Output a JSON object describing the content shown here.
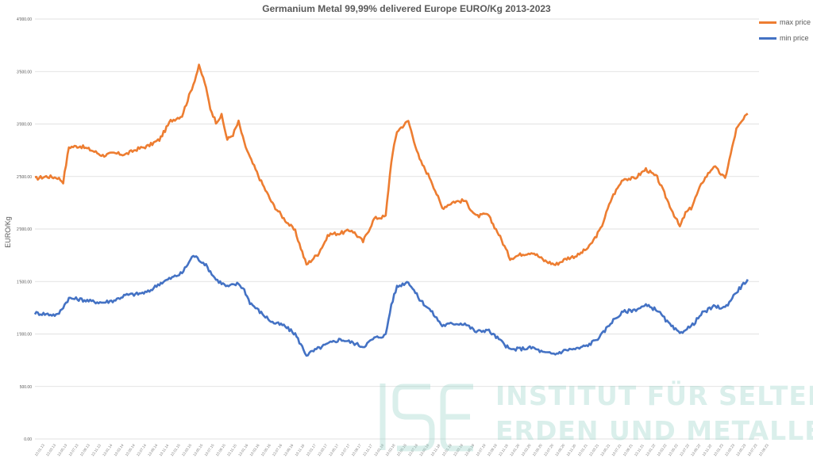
{
  "chart_data": {
    "type": "line",
    "title": "Germanium Metal 99,99% delivered Europe EURO/Kg  2013-2023",
    "xlabel": "",
    "ylabel": "EURO/Kg",
    "ylim": [
      0,
      4000
    ],
    "yticks": [
      "0.00",
      "500.00",
      "1'000.00",
      "1'500.00",
      "2'000.00",
      "2'500.00",
      "3'000.00",
      "3'500.00",
      "4'000.00"
    ],
    "ytick_values": [
      0,
      500,
      1000,
      1500,
      2000,
      2500,
      3000,
      3500,
      4000
    ],
    "grid": true,
    "legend_position": "top-right",
    "xticks": [
      "13.01.13",
      "13.03.13",
      "13.05.13",
      "13.07.13",
      "13.09.13",
      "13.11.13",
      "13.01.14",
      "13.03.14",
      "13.05.14",
      "13.07.14",
      "13.09.14",
      "13.11.14",
      "13.01.15",
      "13.03.15",
      "13.05.15",
      "13.07.15",
      "13.09.15",
      "13.11.15",
      "13.01.16",
      "13.03.16",
      "13.05.16",
      "13.07.16",
      "13.09.16",
      "13.11.16",
      "13.01.17",
      "13.03.17",
      "13.05.17",
      "13.07.17",
      "13.09.17",
      "13.11.17",
      "13.01.18",
      "13.03.18",
      "13.05.18",
      "13.07.18",
      "13.09.18",
      "13.11.18",
      "13.01.19",
      "13.03.19",
      "13.05.19",
      "13.07.19",
      "13.09.19",
      "13.11.19",
      "13.01.20",
      "13.03.20",
      "13.05.20",
      "13.07.20",
      "13.09.20",
      "13.11.20",
      "13.01.21",
      "13.03.21",
      "13.05.21",
      "13.07.21",
      "13.09.21",
      "13.11.21",
      "13.01.22",
      "13.03.22",
      "13.05.22",
      "13.07.22",
      "13.09.22",
      "13.11.22",
      "13.01.23",
      "13.03.23",
      "13.05.23",
      "13.07.23",
      "13.09.23"
    ],
    "x_start": "2013-01",
    "x_end": "2023-09",
    "series": [
      {
        "name": "max price",
        "color": "#ED7D31",
        "points": [
          [
            "2013-01",
            2480
          ],
          [
            "2013-03",
            2500
          ],
          [
            "2013-05",
            2490
          ],
          [
            "2013-06",
            2450
          ],
          [
            "2013-07",
            2780
          ],
          [
            "2013-09",
            2790
          ],
          [
            "2013-11",
            2750
          ],
          [
            "2014-01",
            2700
          ],
          [
            "2014-03",
            2720
          ],
          [
            "2014-05",
            2710
          ],
          [
            "2014-07",
            2760
          ],
          [
            "2014-09",
            2790
          ],
          [
            "2014-11",
            2850
          ],
          [
            "2015-01",
            3030
          ],
          [
            "2015-03",
            3080
          ],
          [
            "2015-05",
            3380
          ],
          [
            "2015-06",
            3550
          ],
          [
            "2015-07",
            3400
          ],
          [
            "2015-08",
            3150
          ],
          [
            "2015-09",
            3020
          ],
          [
            "2015-10",
            3080
          ],
          [
            "2015-11",
            2850
          ],
          [
            "2015-12",
            2900
          ],
          [
            "2016-01",
            3020
          ],
          [
            "2016-02",
            2820
          ],
          [
            "2016-03",
            2680
          ],
          [
            "2016-05",
            2450
          ],
          [
            "2016-07",
            2240
          ],
          [
            "2016-09",
            2100
          ],
          [
            "2016-11",
            1980
          ],
          [
            "2017-01",
            1660
          ],
          [
            "2017-03",
            1760
          ],
          [
            "2017-05",
            1950
          ],
          [
            "2017-07",
            1960
          ],
          [
            "2017-09",
            1990
          ],
          [
            "2017-11",
            1880
          ],
          [
            "2018-01",
            2100
          ],
          [
            "2018-03",
            2120
          ],
          [
            "2018-04",
            2650
          ],
          [
            "2018-05",
            2930
          ],
          [
            "2018-07",
            3030
          ],
          [
            "2018-09",
            2660
          ],
          [
            "2018-11",
            2470
          ],
          [
            "2019-01",
            2200
          ],
          [
            "2019-03",
            2260
          ],
          [
            "2019-05",
            2270
          ],
          [
            "2019-07",
            2120
          ],
          [
            "2019-09",
            2140
          ],
          [
            "2019-11",
            1950
          ],
          [
            "2020-01",
            1720
          ],
          [
            "2020-03",
            1760
          ],
          [
            "2020-05",
            1780
          ],
          [
            "2020-07",
            1700
          ],
          [
            "2020-09",
            1660
          ],
          [
            "2020-11",
            1720
          ],
          [
            "2021-01",
            1750
          ],
          [
            "2021-03",
            1830
          ],
          [
            "2021-05",
            2000
          ],
          [
            "2021-07",
            2300
          ],
          [
            "2021-09",
            2480
          ],
          [
            "2021-11",
            2480
          ],
          [
            "2022-01",
            2570
          ],
          [
            "2022-03",
            2490
          ],
          [
            "2022-05",
            2250
          ],
          [
            "2022-07",
            2020
          ],
          [
            "2022-08",
            2150
          ],
          [
            "2022-09",
            2200
          ],
          [
            "2022-11",
            2450
          ],
          [
            "2023-01",
            2600
          ],
          [
            "2023-03",
            2480
          ],
          [
            "2023-05",
            2950
          ],
          [
            "2023-07",
            3100
          ]
        ]
      },
      {
        "name": "min price",
        "color": "#4472C4",
        "points": [
          [
            "2013-01",
            1200
          ],
          [
            "2013-03",
            1190
          ],
          [
            "2013-05",
            1180
          ],
          [
            "2013-07",
            1340
          ],
          [
            "2013-09",
            1330
          ],
          [
            "2013-11",
            1310
          ],
          [
            "2014-01",
            1300
          ],
          [
            "2014-03",
            1320
          ],
          [
            "2014-05",
            1370
          ],
          [
            "2014-07",
            1380
          ],
          [
            "2014-09",
            1400
          ],
          [
            "2014-11",
            1480
          ],
          [
            "2015-01",
            1530
          ],
          [
            "2015-03",
            1580
          ],
          [
            "2015-05",
            1750
          ],
          [
            "2015-07",
            1670
          ],
          [
            "2015-09",
            1520
          ],
          [
            "2015-11",
            1450
          ],
          [
            "2016-01",
            1480
          ],
          [
            "2016-02",
            1420
          ],
          [
            "2016-03",
            1300
          ],
          [
            "2016-05",
            1200
          ],
          [
            "2016-07",
            1110
          ],
          [
            "2016-09",
            1080
          ],
          [
            "2016-11",
            1000
          ],
          [
            "2017-01",
            800
          ],
          [
            "2017-03",
            860
          ],
          [
            "2017-05",
            910
          ],
          [
            "2017-07",
            950
          ],
          [
            "2017-09",
            920
          ],
          [
            "2017-11",
            880
          ],
          [
            "2018-01",
            960
          ],
          [
            "2018-03",
            990
          ],
          [
            "2018-04",
            1280
          ],
          [
            "2018-05",
            1450
          ],
          [
            "2018-07",
            1500
          ],
          [
            "2018-09",
            1330
          ],
          [
            "2018-11",
            1220
          ],
          [
            "2019-01",
            1080
          ],
          [
            "2019-03",
            1100
          ],
          [
            "2019-05",
            1100
          ],
          [
            "2019-07",
            1020
          ],
          [
            "2019-09",
            1040
          ],
          [
            "2019-11",
            950
          ],
          [
            "2020-01",
            850
          ],
          [
            "2020-03",
            860
          ],
          [
            "2020-05",
            870
          ],
          [
            "2020-07",
            820
          ],
          [
            "2020-09",
            810
          ],
          [
            "2020-11",
            850
          ],
          [
            "2021-01",
            860
          ],
          [
            "2021-03",
            900
          ],
          [
            "2021-05",
            980
          ],
          [
            "2021-07",
            1120
          ],
          [
            "2021-09",
            1210
          ],
          [
            "2021-11",
            1230
          ],
          [
            "2022-01",
            1270
          ],
          [
            "2022-03",
            1230
          ],
          [
            "2022-05",
            1100
          ],
          [
            "2022-07",
            1000
          ],
          [
            "2022-08",
            1050
          ],
          [
            "2022-09",
            1070
          ],
          [
            "2022-11",
            1200
          ],
          [
            "2023-01",
            1260
          ],
          [
            "2023-03",
            1250
          ],
          [
            "2023-05",
            1400
          ],
          [
            "2023-07",
            1520
          ]
        ]
      }
    ]
  },
  "watermark": {
    "line1": "INSTITUT FÜR SELTENE",
    "line2": "ERDEN UND METALLE AG"
  }
}
